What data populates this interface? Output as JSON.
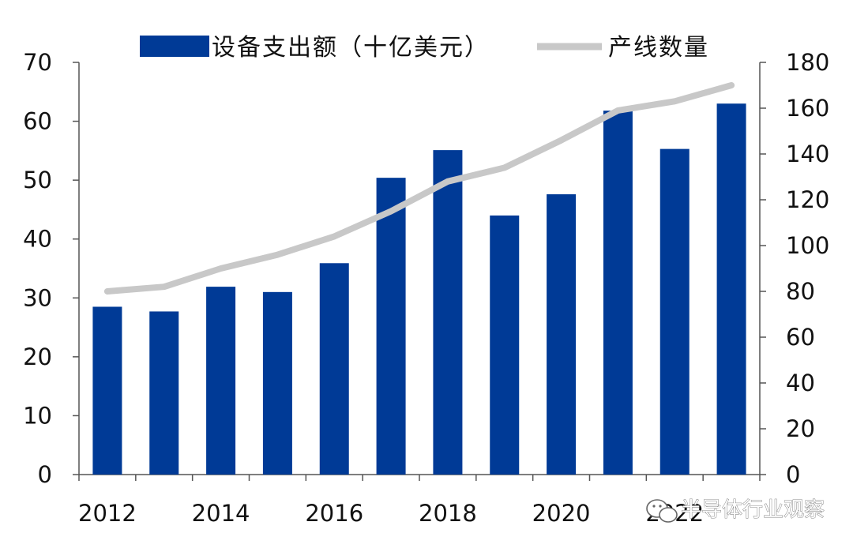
{
  "chart_data": {
    "type": "bar",
    "categories": [
      "2012",
      "2013",
      "2014",
      "2015",
      "2016",
      "2017",
      "2018",
      "2019",
      "2020",
      "2021",
      "2022",
      "2023"
    ],
    "x_tick_labels": [
      "2012",
      "2014",
      "2016",
      "2018",
      "2020",
      "2022"
    ],
    "series": [
      {
        "name": "设备支出额（十亿美元）",
        "type": "bar",
        "axis": "left",
        "color": "#003a96",
        "values": [
          28.5,
          27.7,
          31.9,
          31.0,
          35.9,
          50.4,
          55.1,
          44.0,
          47.6,
          61.8,
          55.3,
          63.0
        ]
      },
      {
        "name": "产线数量",
        "type": "line",
        "axis": "right",
        "color": "#c8c8c8",
        "values": [
          80,
          82,
          90,
          96,
          104,
          115,
          128,
          134,
          146,
          159,
          163,
          170
        ]
      }
    ],
    "y_left": {
      "range": [
        0,
        70
      ],
      "ticks": [
        "0",
        "10",
        "20",
        "30",
        "40",
        "50",
        "60",
        "70"
      ]
    },
    "y_right": {
      "range": [
        0,
        180
      ],
      "ticks": [
        "0",
        "20",
        "40",
        "60",
        "80",
        "100",
        "120",
        "140",
        "160",
        "180"
      ]
    },
    "grid": false,
    "legend_position": "top"
  },
  "watermark": {
    "text": "半导体行业观察",
    "icon": "wechat-icon"
  }
}
